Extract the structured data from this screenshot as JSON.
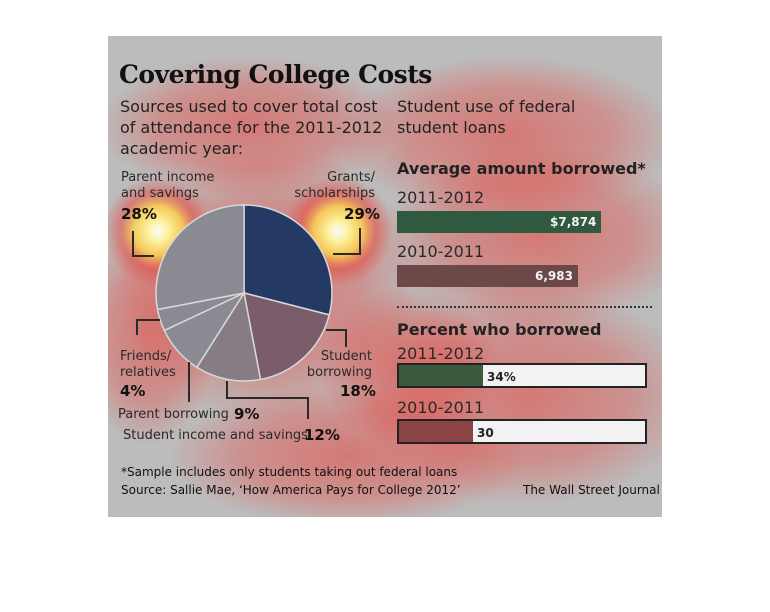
{
  "chart_data": [
    {
      "type": "pie",
      "title": "Covering College Costs",
      "subtitle": "Sources used to cover total cost of attendance for the 2011-2012 academic year:",
      "categories": [
        "Grants/ scholarships",
        "Student borrowing",
        "Student income and savings",
        "Parent borrowing",
        "Friends/ relatives",
        "Parent income and savings"
      ],
      "values": [
        29,
        18,
        12,
        9,
        4,
        28
      ],
      "value_labels": [
        "29%",
        "18%",
        "12%",
        "9%",
        "4%",
        "28%"
      ],
      "colors": [
        "#243a64",
        "#7a5c6a",
        "#867c86",
        "#8a8a92",
        "#8a8a92",
        "#8a8a92"
      ]
    },
    {
      "type": "bar",
      "title": "Student use of federal student loans",
      "subtitle": "Average amount borrowed*",
      "categories": [
        "2011-2012",
        "2010-2011"
      ],
      "values": [
        7874,
        6983
      ],
      "value_labels": [
        "$7,874",
        "6,983"
      ],
      "xlim": [
        0,
        9800
      ],
      "colors": [
        "#2f5a40",
        "#6c4848"
      ]
    },
    {
      "type": "bar",
      "subtitle": "Percent who borrowed",
      "categories": [
        "2011-2012",
        "2010-2011"
      ],
      "values": [
        34,
        30
      ],
      "value_labels": [
        "34%",
        "30"
      ],
      "xlim": [
        0,
        100
      ],
      "colors": [
        "#3c5a3e",
        "#8a4444"
      ]
    }
  ],
  "footnote": "*Sample includes only students taking out federal loans",
  "source": "Source: Sallie Mae, ‘How America Pays for College 2012’",
  "credit": "The Wall Street Journal",
  "colors": {
    "panel": "#bcbcbc",
    "heat_red": "#e8433c",
    "heat_yellow": "#fff59a"
  }
}
